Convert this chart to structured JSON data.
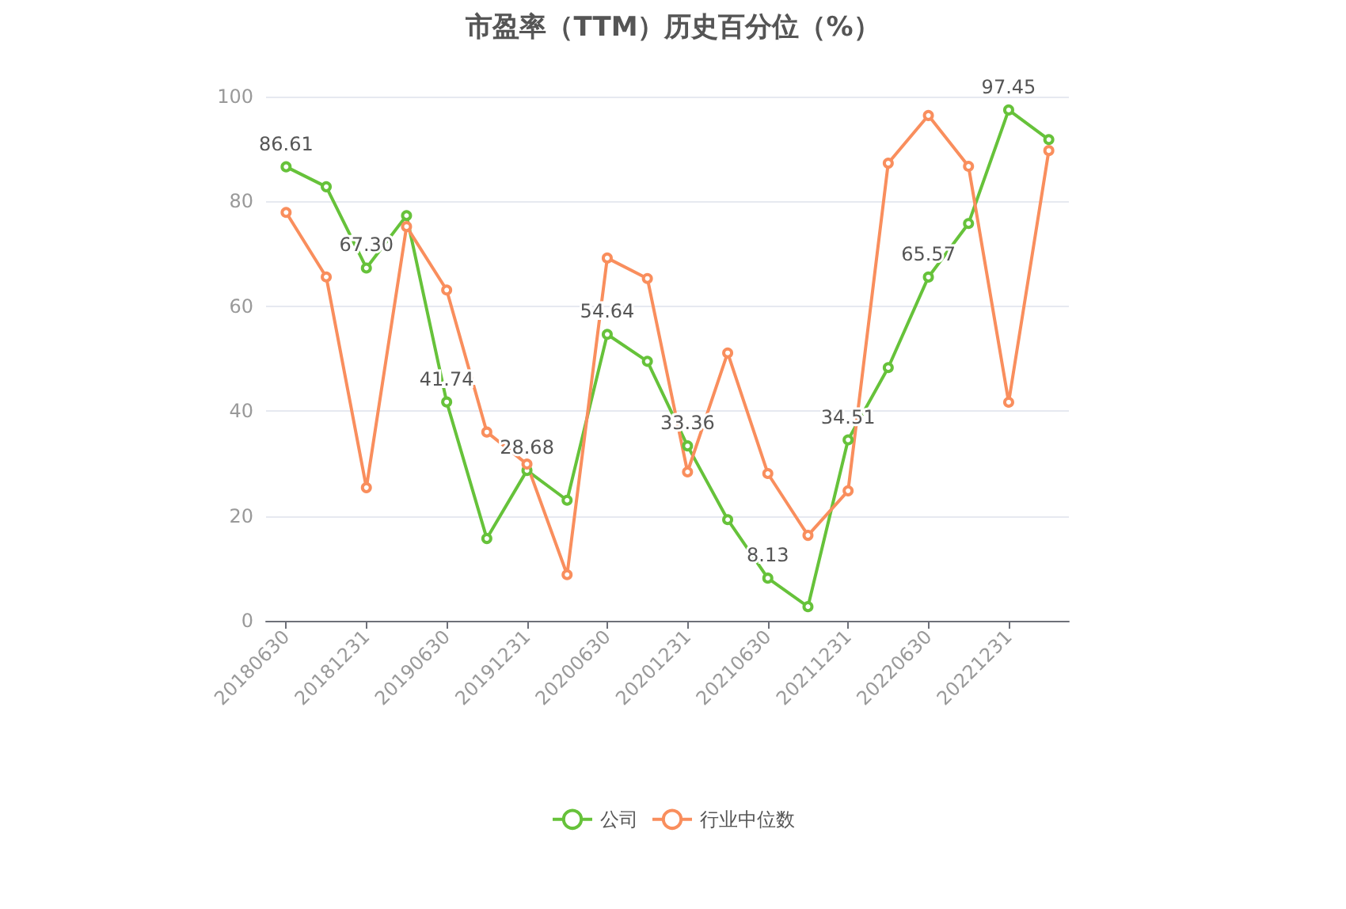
{
  "chart_data": {
    "type": "line",
    "title": "市盈率（TTM）历史百分位（%）",
    "categories": [
      "20180630",
      null,
      "20181231",
      null,
      "20190630",
      null,
      "20191231",
      null,
      "20200630",
      null,
      "20201231",
      null,
      "20210630",
      null,
      "20211231",
      null,
      "20220630",
      null,
      "20221231",
      null
    ],
    "series": [
      {
        "name": "公司",
        "color": "#66c23a",
        "values": [
          86.61,
          82.8,
          67.3,
          77.3,
          41.74,
          15.7,
          28.68,
          23.0,
          54.64,
          49.5,
          33.36,
          19.3,
          8.13,
          2.7,
          34.51,
          48.3,
          65.57,
          75.8,
          97.45,
          91.8
        ],
        "value_labels": [
          "86.61",
          null,
          "67.30",
          null,
          "41.74",
          null,
          "28.68",
          null,
          "54.64",
          null,
          "33.36",
          null,
          "8.13",
          null,
          "34.51",
          null,
          "65.57",
          null,
          "97.45",
          null
        ]
      },
      {
        "name": "行业中位数",
        "color": "#f98e5d",
        "values": [
          77.9,
          65.6,
          25.4,
          75.2,
          63.1,
          36.0,
          29.9,
          8.8,
          69.2,
          65.3,
          28.4,
          51.1,
          28.1,
          16.3,
          24.8,
          87.3,
          96.4,
          86.7,
          41.7,
          89.7
        ]
      }
    ],
    "ylim": [
      0,
      100
    ],
    "yticks": [
      0,
      20,
      40,
      60,
      80,
      100
    ],
    "grid": "y",
    "legend": "bottom",
    "marker": "circle",
    "line_style": "solid"
  }
}
